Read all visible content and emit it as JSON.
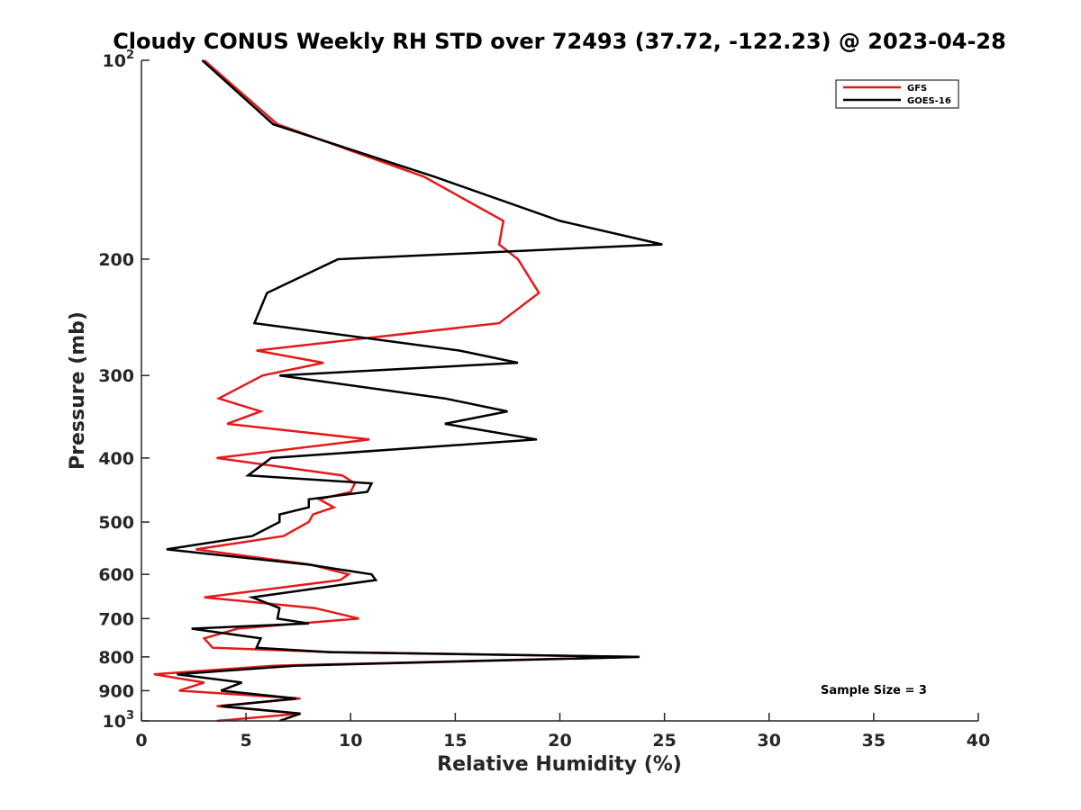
{
  "chart_data": {
    "type": "line",
    "title": "Cloudy CONUS Weekly RH STD over 72493 (37.72, -122.23) @ 2023-04-28",
    "xlabel": "Relative Humidity (%)",
    "ylabel": "Pressure (mb)",
    "xlim": [
      0,
      40
    ],
    "ylim": [
      100,
      1000
    ],
    "y_scale": "log",
    "y_reversed": true,
    "grid": false,
    "legend_position": "top-right",
    "x_ticks": [
      0,
      5,
      10,
      15,
      20,
      25,
      30,
      35,
      40
    ],
    "y_ticks": [
      {
        "value": 100,
        "base": "10",
        "exp": "2"
      },
      {
        "value": 200,
        "label": "200"
      },
      {
        "value": 300,
        "label": "300"
      },
      {
        "value": 400,
        "label": "400"
      },
      {
        "value": 500,
        "label": "500"
      },
      {
        "value": 600,
        "label": "600"
      },
      {
        "value": 700,
        "label": "700"
      },
      {
        "value": 800,
        "label": "800"
      },
      {
        "value": 900,
        "label": "900"
      },
      {
        "value": 1000,
        "base": "10",
        "exp": "3"
      }
    ],
    "annotation": "Sample Size = 3",
    "series": [
      {
        "name": "GFS",
        "color": "#e41a1a",
        "points": [
          [
            3.0,
            100
          ],
          [
            6.5,
            125
          ],
          [
            13.5,
            150
          ],
          [
            17.3,
            175
          ],
          [
            17.1,
            190
          ],
          [
            18.0,
            200
          ],
          [
            19.0,
            225
          ],
          [
            17.1,
            250
          ],
          [
            5.5,
            275
          ],
          [
            8.7,
            287
          ],
          [
            5.8,
            300
          ],
          [
            3.7,
            325
          ],
          [
            5.7,
            340
          ],
          [
            4.1,
            355
          ],
          [
            10.9,
            375
          ],
          [
            3.6,
            400
          ],
          [
            9.6,
            425
          ],
          [
            10.2,
            437
          ],
          [
            10.0,
            450
          ],
          [
            8.5,
            462
          ],
          [
            9.2,
            475
          ],
          [
            8.2,
            487
          ],
          [
            8.0,
            500
          ],
          [
            6.8,
            525
          ],
          [
            2.6,
            550
          ],
          [
            8.1,
            580
          ],
          [
            9.9,
            600
          ],
          [
            9.5,
            612
          ],
          [
            3.0,
            650
          ],
          [
            8.3,
            675
          ],
          [
            10.4,
            700
          ],
          [
            4.6,
            725
          ],
          [
            3.0,
            750
          ],
          [
            3.4,
            775
          ],
          [
            9.2,
            787
          ],
          [
            23.8,
            800
          ],
          [
            6.3,
            825
          ],
          [
            0.6,
            850
          ],
          [
            3.0,
            875
          ],
          [
            1.8,
            900
          ],
          [
            7.6,
            925
          ],
          [
            3.6,
            950
          ],
          [
            7.6,
            975
          ],
          [
            3.6,
            1000
          ]
        ]
      },
      {
        "name": "GOES-16",
        "color": "#000000",
        "points": [
          [
            2.9,
            100
          ],
          [
            6.3,
            125
          ],
          [
            14.0,
            150
          ],
          [
            20.0,
            175
          ],
          [
            24.9,
            190
          ],
          [
            9.4,
            200
          ],
          [
            6.0,
            225
          ],
          [
            5.4,
            250
          ],
          [
            15.2,
            275
          ],
          [
            18.0,
            287
          ],
          [
            6.6,
            300
          ],
          [
            14.5,
            325
          ],
          [
            17.5,
            340
          ],
          [
            14.5,
            355
          ],
          [
            18.9,
            375
          ],
          [
            6.2,
            400
          ],
          [
            5.1,
            425
          ],
          [
            11.0,
            437
          ],
          [
            10.8,
            450
          ],
          [
            8.0,
            462
          ],
          [
            8.0,
            475
          ],
          [
            6.6,
            487
          ],
          [
            6.6,
            500
          ],
          [
            5.3,
            525
          ],
          [
            1.2,
            550
          ],
          [
            8.0,
            580
          ],
          [
            11.0,
            600
          ],
          [
            11.2,
            612
          ],
          [
            5.3,
            650
          ],
          [
            6.6,
            675
          ],
          [
            6.5,
            700
          ],
          [
            8.0,
            712
          ],
          [
            2.4,
            725
          ],
          [
            5.7,
            750
          ],
          [
            5.5,
            775
          ],
          [
            9.0,
            787
          ],
          [
            23.8,
            800
          ],
          [
            7.3,
            825
          ],
          [
            1.7,
            850
          ],
          [
            4.8,
            875
          ],
          [
            3.8,
            900
          ],
          [
            7.4,
            925
          ],
          [
            3.8,
            950
          ],
          [
            7.6,
            975
          ],
          [
            6.6,
            1000
          ]
        ]
      }
    ]
  }
}
